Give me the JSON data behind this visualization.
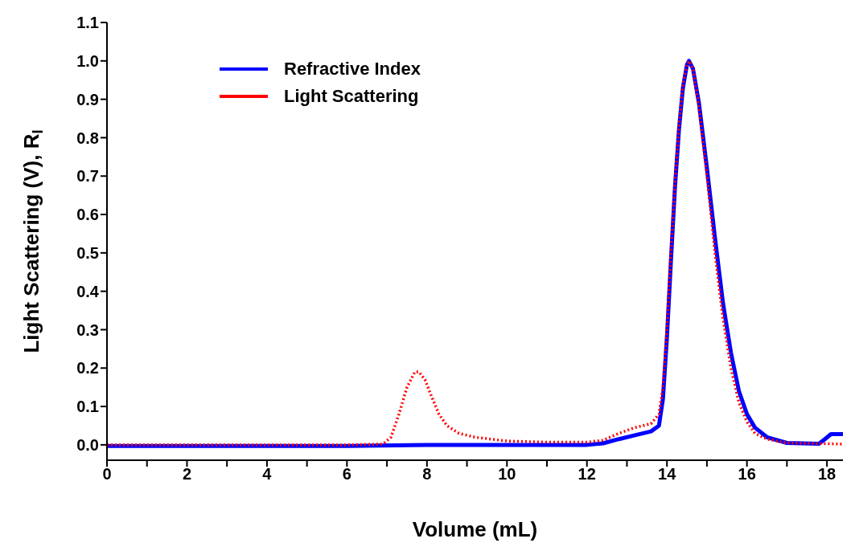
{
  "chart_data": {
    "type": "line",
    "xlabel": "Volume (mL)",
    "ylabel": "Light Scattering (V), R$_{I}$",
    "xlim": [
      0,
      18.4
    ],
    "xticks": [
      0,
      {
        "value": 1,
        "label": null
      },
      2,
      {
        "value": 3,
        "label": null
      },
      4,
      {
        "value": 5,
        "label": null
      },
      6,
      {
        "value": 7,
        "label": null
      },
      8,
      {
        "value": 9,
        "label": null
      },
      10,
      {
        "value": 11,
        "label": null
      },
      12,
      {
        "value": 13,
        "label": null
      },
      14,
      {
        "value": 15,
        "label": null
      },
      16,
      {
        "value": 17,
        "label": null
      },
      18
    ],
    "ylim": [
      -0.04,
      1.1
    ],
    "yticks": [
      {
        "value": 0,
        "label": "0.0"
      },
      0.1,
      0.2,
      0.3,
      0.4,
      0.5,
      0.6,
      0.7,
      0.8,
      0.9,
      {
        "value": 1,
        "label": "1.0"
      },
      1.1
    ],
    "grid": false,
    "legend": "top left",
    "line_style": "solid",
    "series": [
      {
        "name": "Refractive Index",
        "color": "#0000ff",
        "x": [
          0,
          6,
          8,
          10,
          12,
          12.4,
          12.8,
          13.2,
          13.6,
          13.8,
          13.9,
          14.0,
          14.1,
          14.2,
          14.3,
          14.4,
          14.5,
          14.55,
          14.65,
          14.8,
          15.0,
          15.2,
          15.4,
          15.6,
          15.8,
          16.0,
          16.2,
          16.5,
          17,
          17.8,
          17.95,
          18.1,
          18.4
        ],
        "values": [
          -0.003,
          -0.003,
          0,
          0,
          0,
          0.004,
          0.015,
          0.025,
          0.035,
          0.05,
          0.12,
          0.28,
          0.48,
          0.67,
          0.82,
          0.93,
          0.99,
          1.0,
          0.98,
          0.89,
          0.72,
          0.54,
          0.37,
          0.24,
          0.14,
          0.08,
          0.045,
          0.02,
          0.005,
          0.003,
          0.015,
          0.028,
          0.028
        ]
      },
      {
        "name": "Light Scattering",
        "color": "#ff0000",
        "line_style": "dotted",
        "x": [
          0,
          2,
          4,
          6,
          6.9,
          7.1,
          7.3,
          7.5,
          7.7,
          7.8,
          7.95,
          8.1,
          8.3,
          8.5,
          8.8,
          9.2,
          10,
          11,
          12,
          12.4,
          12.8,
          13.2,
          13.6,
          13.8,
          13.9,
          14.0,
          14.1,
          14.2,
          14.3,
          14.4,
          14.5,
          14.55,
          14.65,
          14.8,
          15.0,
          15.2,
          15.4,
          15.6,
          15.8,
          16.0,
          16.2,
          16.5,
          17,
          18,
          18.4
        ],
        "values": [
          0,
          0,
          0,
          0,
          0.002,
          0.02,
          0.08,
          0.15,
          0.19,
          0.19,
          0.17,
          0.13,
          0.08,
          0.05,
          0.03,
          0.02,
          0.01,
          0.007,
          0.007,
          0.012,
          0.03,
          0.045,
          0.055,
          0.08,
          0.15,
          0.3,
          0.5,
          0.68,
          0.83,
          0.94,
          0.99,
          1.0,
          0.98,
          0.88,
          0.7,
          0.5,
          0.33,
          0.2,
          0.11,
          0.06,
          0.03,
          0.015,
          0.005,
          0.003,
          0.002
        ]
      }
    ]
  }
}
